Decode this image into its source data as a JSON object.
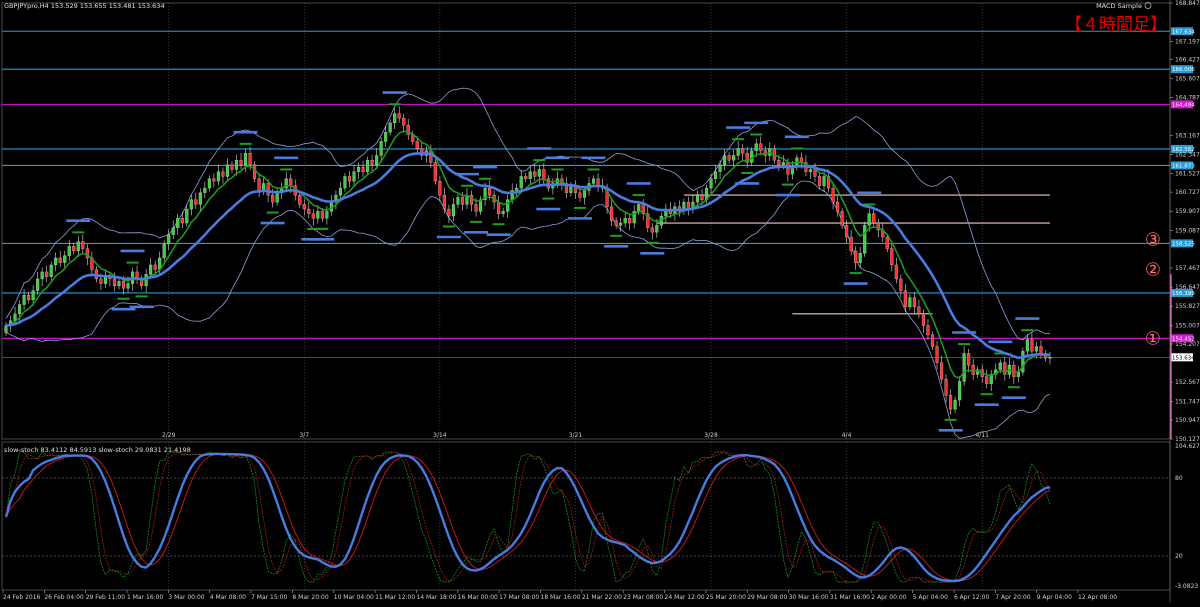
{
  "header": {
    "symbol_line": "GBPJPYpro,H4  153.529 153.655 153.481 153.634",
    "indicator_name": "MACD Sample",
    "timeframe_note": "【４時間足】"
  },
  "stoch": {
    "label": "slow-stoch 83.4112 84.5913  slow-stoch 29.0831 21.4198",
    "axis_labels": [
      "104.6279",
      "80",
      "20",
      "-3.0823"
    ]
  },
  "chart_data": {
    "type": "candlestick",
    "symbol": "GBPJPYpro",
    "timeframe": "H4",
    "ylim": [
      150.127,
      168.847
    ],
    "y_ticks": [
      168.847,
      167.197,
      166.427,
      165.607,
      164.787,
      163.167,
      162.347,
      161.527,
      160.727,
      159.907,
      159.087,
      157.467,
      156.647,
      155.827,
      155.007,
      154.207,
      152.567,
      151.747,
      150.947,
      150.127
    ],
    "current_price": "153.634",
    "x_tick_labels": [
      "24 Feb 2016",
      "26 Feb 04:00",
      "29 Feb 11:00",
      "1 Mar 16:00",
      "3 Mar 00:00",
      "4 Mar 08:00",
      "7 Mar 15:00",
      "8 Mar 20:00",
      "10 Mar 04:00",
      "11 Mar 12:00",
      "14 Mar 18:00",
      "16 Mar 00:00",
      "17 Mar 08:00",
      "18 Mar 16:00",
      "21 Mar 22:00",
      "23 Mar 08:00",
      "24 Mar 12:00",
      "25 Mar 20:00",
      "29 Mar 08:00",
      "30 Mar 16:00",
      "31 Mar 16:00",
      "2 Apr 00:00",
      "5 Apr 04:00",
      "6 Apr 12:00",
      "7 Apr 20:00",
      "9 Apr 04:00",
      "12 Apr 08:00"
    ],
    "date_markers": [
      "2/29",
      "3/7",
      "3/14",
      "3/21",
      "3/28",
      "4/4",
      "4/11"
    ],
    "horizontal_levels": [
      {
        "price": 167.634,
        "label": "167.634",
        "color": "#2a9bd6"
      },
      {
        "price": 166.006,
        "label": "166.006",
        "color": "#2a9bd6"
      },
      {
        "price": 164.494,
        "label": "164.494",
        "color": "#d41ad4"
      },
      {
        "price": 162.582,
        "label": "162.582",
        "color": "#2a9bd6"
      },
      {
        "price": 161.873,
        "label": "161.873",
        "color": "#2a9bd6"
      },
      {
        "price": 158.525,
        "label": "158.525",
        "color": "#2a9bd6"
      },
      {
        "price": 156.399,
        "label": "156.399",
        "color": "#2a9bd6"
      },
      {
        "price": 154.452,
        "label": "154.452",
        "color": "#d41ad4"
      }
    ],
    "numbered_markers": [
      {
        "text": "①",
        "price": 154.45
      },
      {
        "text": "②",
        "price": 157.4
      },
      {
        "text": "③",
        "price": 158.7
      }
    ],
    "resistance_segments": [
      {
        "price": 160.6,
        "from_index": 150,
        "to_index": 231
      },
      {
        "price": 159.4,
        "from_index": 144,
        "to_index": 231
      },
      {
        "price": 155.5,
        "from_index": 174,
        "to_index": 205
      }
    ],
    "closes": [
      155.0,
      155.2,
      155.5,
      155.9,
      156.3,
      156.1,
      156.5,
      157.0,
      157.3,
      157.1,
      157.6,
      157.9,
      157.7,
      158.0,
      158.4,
      158.2,
      158.6,
      158.3,
      157.9,
      157.4,
      157.0,
      156.8,
      157.1,
      157.0,
      156.7,
      156.9,
      156.6,
      156.8,
      157.3,
      157.0,
      156.7,
      157.2,
      157.6,
      157.4,
      157.9,
      158.5,
      158.9,
      159.2,
      159.6,
      159.4,
      160.0,
      160.4,
      160.2,
      160.7,
      160.9,
      161.3,
      161.2,
      161.6,
      161.4,
      161.9,
      161.7,
      162.1,
      161.9,
      162.4,
      161.9,
      161.3,
      160.8,
      161.1,
      160.6,
      160.3,
      160.7,
      160.9,
      161.3,
      161.0,
      160.6,
      160.2,
      160.0,
      159.8,
      159.6,
      159.9,
      159.6,
      159.9,
      160.3,
      160.6,
      160.9,
      161.4,
      161.2,
      161.6,
      161.8,
      161.6,
      162.1,
      161.9,
      162.3,
      162.9,
      163.3,
      163.7,
      164.1,
      163.9,
      163.6,
      163.2,
      162.9,
      162.6,
      162.3,
      162.5,
      162.0,
      161.2,
      160.6,
      160.0,
      159.7,
      160.2,
      160.5,
      160.2,
      160.6,
      160.2,
      159.9,
      160.4,
      160.9,
      160.6,
      160.3,
      159.8,
      159.9,
      160.4,
      160.8,
      160.9,
      161.4,
      161.3,
      161.6,
      161.4,
      161.7,
      161.3,
      160.9,
      161.1,
      161.3,
      161.1,
      160.7,
      161.0,
      160.7,
      160.5,
      160.8,
      161.1,
      161.3,
      161.0,
      160.9,
      160.1,
      159.5,
      159.3,
      159.4,
      159.6,
      159.4,
      159.9,
      160.2,
      159.8,
      159.2,
      159.0,
      159.3,
      159.7,
      160.0,
      159.8,
      160.1,
      159.9,
      160.3,
      160.0,
      160.3,
      160.6,
      160.4,
      160.9,
      161.3,
      161.6,
      161.9,
      162.3,
      162.1,
      162.3,
      162.6,
      162.4,
      162.0,
      162.5,
      162.8,
      162.5,
      162.3,
      162.6,
      162.1,
      161.9,
      162.0,
      161.5,
      161.8,
      162.2,
      162.0,
      161.6,
      161.7,
      161.4,
      161.0,
      161.4,
      160.9,
      160.3,
      159.9,
      159.3,
      158.8,
      158.2,
      157.7,
      158.1,
      159.3,
      159.8,
      159.4,
      159.1,
      158.8,
      158.3,
      157.6,
      157.0,
      156.5,
      155.8,
      156.2,
      155.8,
      155.5,
      155.0,
      154.6,
      154.1,
      153.4,
      152.7,
      152.0,
      151.4,
      151.8,
      152.6,
      153.8,
      153.3,
      152.9,
      153.1,
      152.8,
      152.5,
      152.9,
      153.1,
      153.4,
      152.9,
      153.3,
      152.8,
      153.0,
      153.9,
      154.4,
      153.9,
      154.1,
      153.8,
      153.6,
      153.634
    ],
    "indicators": [
      {
        "name": "Bollinger upper",
        "color": "#8f9fd9"
      },
      {
        "name": "Bollinger lower",
        "color": "#8f9fd9"
      },
      {
        "name": "EMA fast",
        "color": "#1f9e1f"
      },
      {
        "name": "EMA slow",
        "color": "#4a7be0"
      }
    ]
  }
}
